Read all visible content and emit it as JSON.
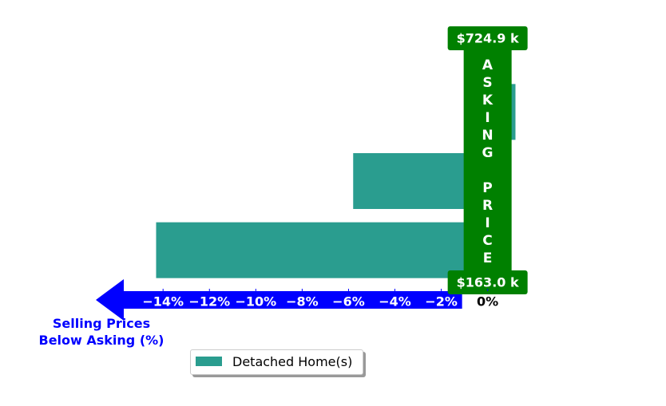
{
  "chart_data": {
    "type": "barh",
    "categories": [
      null,
      null,
      null
    ],
    "series": [
      {
        "name": "Detached Home(s)",
        "color": "#2a9d8f",
        "values": [
          1.2,
          -5.8,
          -14.3
        ]
      }
    ],
    "xlim": [
      -16.9,
      1.7
    ],
    "xticks": [
      {
        "value": -14,
        "label": "−14%"
      },
      {
        "value": -12,
        "label": "−12%"
      },
      {
        "value": -10,
        "label": "−10%"
      },
      {
        "value": -8,
        "label": "−8%"
      },
      {
        "value": -6,
        "label": "−6%"
      },
      {
        "value": -4,
        "label": "−4%"
      },
      {
        "value": -2,
        "label": "−2%"
      },
      {
        "value": 0,
        "label": "0%"
      }
    ],
    "xlabel": "Selling Prices\nBelow Asking (%)",
    "annotations": {
      "asking_label": "ASKING PRICE",
      "top_price": "$724.9 k",
      "bottom_price": "$163.0 k"
    },
    "axis_color": "#0000ff",
    "marker_color": "#008000",
    "legend": "lower center"
  }
}
